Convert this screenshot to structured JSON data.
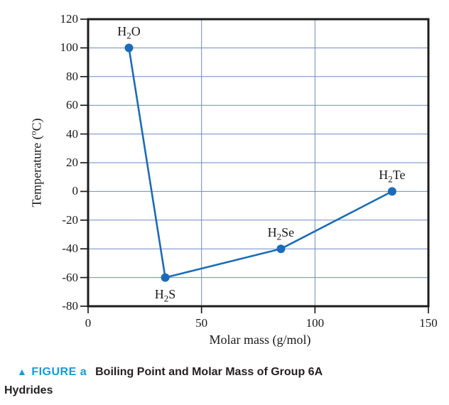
{
  "colors": {
    "line": "#1b6cb8",
    "marker_fill": "#1b6cb8",
    "grid": "#6e8bc0",
    "frame": "#1c1c1c",
    "tick": "#1c1c1c",
    "axis_text": "#1a1a1a",
    "caption_accent": "#119dda",
    "caption_text": "#231f20"
  },
  "chart_data": {
    "type": "scatter",
    "title": "",
    "xlabel": "Molar mass (g/mol)",
    "ylabel": {
      "pre": "Temperature (",
      "sup": "o",
      "post": "C)"
    },
    "xlim": [
      0,
      150
    ],
    "ylim": [
      -80,
      120
    ],
    "xticks": [
      0,
      50,
      100,
      150
    ],
    "yticks": [
      120,
      100,
      80,
      60,
      40,
      20,
      0,
      -20,
      -40,
      -60,
      -80
    ],
    "xgridlines": [
      50,
      100
    ],
    "ygridlines": [
      100,
      80,
      60,
      40,
      20,
      0,
      -20,
      -40,
      -60
    ],
    "grid": true,
    "legend": "none",
    "series_name": "Boiling point of Group 6A hydrides",
    "points": [
      {
        "name": "H2O",
        "formula": {
          "pre": "H",
          "sub": "2",
          "post": "O"
        },
        "x": 18,
        "y": 100,
        "label_position": "above"
      },
      {
        "name": "H2S",
        "formula": {
          "pre": "H",
          "sub": "2",
          "post": "S"
        },
        "x": 34,
        "y": -60,
        "label_position": "below"
      },
      {
        "name": "H2Se",
        "formula": {
          "pre": "H",
          "sub": "2",
          "post": "Se"
        },
        "x": 85,
        "y": -40,
        "label_position": "above"
      },
      {
        "name": "H2Te",
        "formula": {
          "pre": "H",
          "sub": "2",
          "post": "Te"
        },
        "x": 134,
        "y": 0,
        "label_position": "above"
      }
    ]
  },
  "caption": {
    "marker": "▲",
    "label": "FIGURE a",
    "title_line1": "Boiling Point and Molar Mass of Group 6A",
    "title_line2": "Hydrides"
  }
}
